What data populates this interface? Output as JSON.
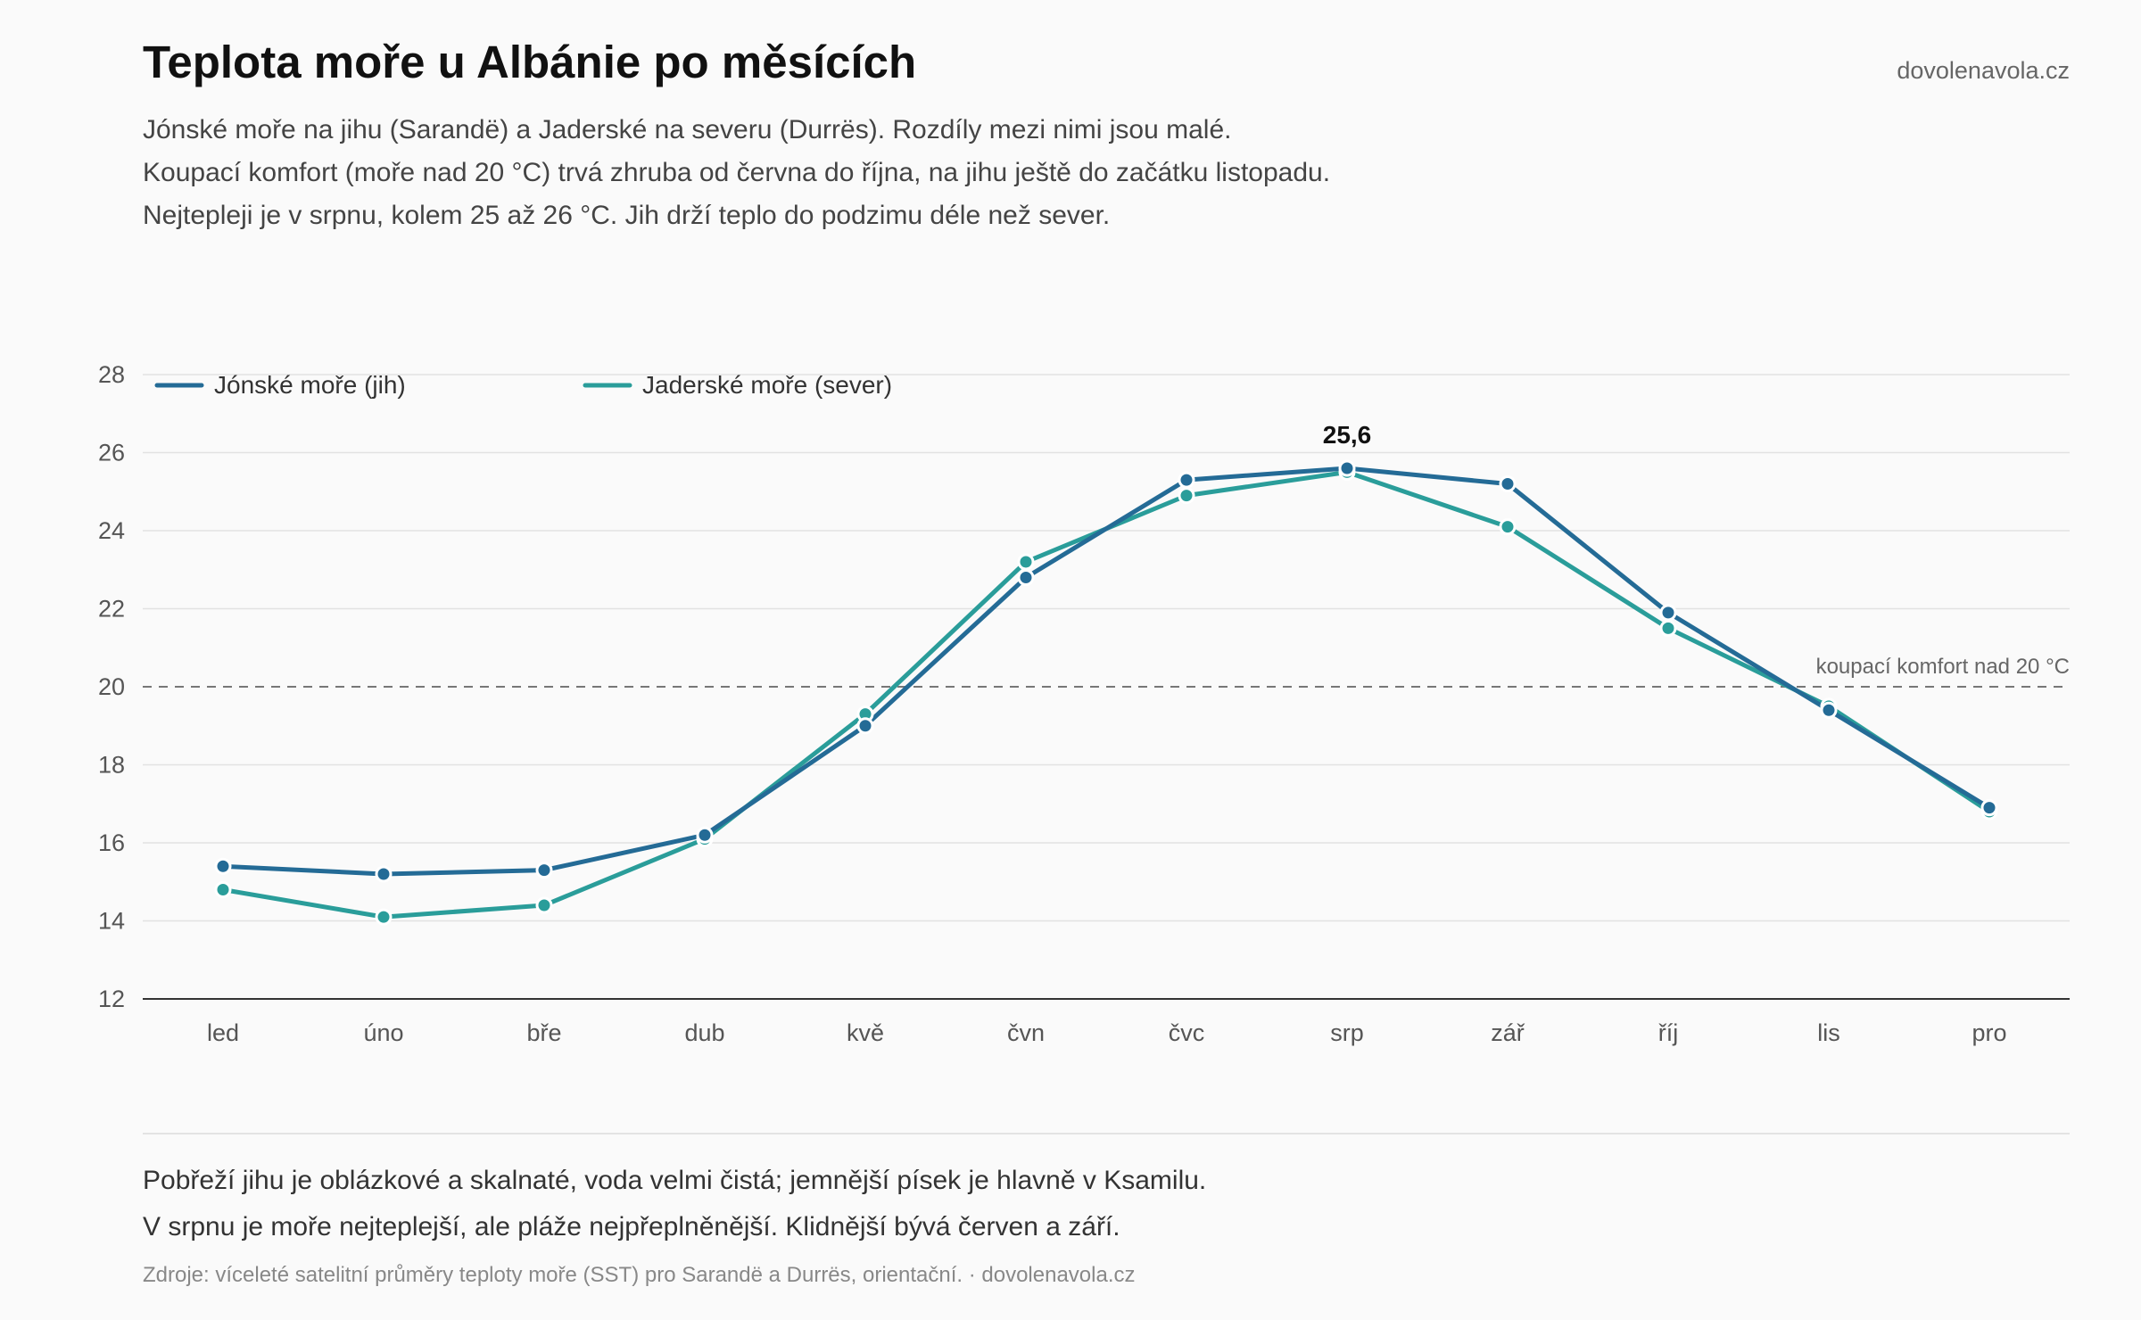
{
  "header": {
    "title": "Teplota moře u Albánie po měsících",
    "brand": "dovolenavola.cz",
    "subtitle_lines": [
      "Jónské moře na jihu (Sarandë) a Jaderské na severu (Durrës). Rozdíly mezi nimi jsou malé.",
      "Koupací komfort (moře nad 20 °C) trvá zhruba od června do října, na jihu ještě do začátku listopadu.",
      "Nejtepleji je v srpnu, kolem 25 až 26 °C. Jih drží teplo do podzimu déle než sever."
    ]
  },
  "chart_data": {
    "type": "line",
    "categories": [
      "led",
      "úno",
      "bře",
      "dub",
      "kvě",
      "čvn",
      "čvc",
      "srp",
      "zář",
      "říj",
      "lis",
      "pro"
    ],
    "series": [
      {
        "name": "Jónské moře (jih)",
        "color": "#246b96",
        "values": [
          15.4,
          15.2,
          15.3,
          16.2,
          19.0,
          22.8,
          25.3,
          25.6,
          25.2,
          21.9,
          19.4,
          16.9
        ]
      },
      {
        "name": "Jaderské moře (sever)",
        "color": "#2a9d9a",
        "values": [
          14.8,
          14.1,
          14.4,
          16.1,
          19.3,
          23.2,
          24.9,
          25.5,
          24.1,
          21.5,
          19.5,
          16.8
        ]
      }
    ],
    "ylim": [
      12,
      28
    ],
    "yticks": [
      12,
      14,
      16,
      18,
      20,
      22,
      24,
      26,
      28
    ],
    "grid": true,
    "legend_position": "top-left",
    "reference_line": {
      "value": 20,
      "label": "koupací komfort nad 20 °C"
    },
    "peak_annotation": {
      "category": "srp",
      "series": 0,
      "label": "25,6"
    }
  },
  "footer": {
    "notes": [
      "Pobřeží jihu je oblázkové a skalnaté, voda velmi čistá; jemnější písek je hlavně v Ksamilu.",
      "V srpnu je moře nejteplejší, ale pláže nejpřeplněnější. Klidnější bývá červen a září."
    ],
    "source": "Zdroje: víceleté satelitní průměry teploty moře (SST) pro Sarandë a Durrës, orientační. · dovolenavola.cz"
  }
}
